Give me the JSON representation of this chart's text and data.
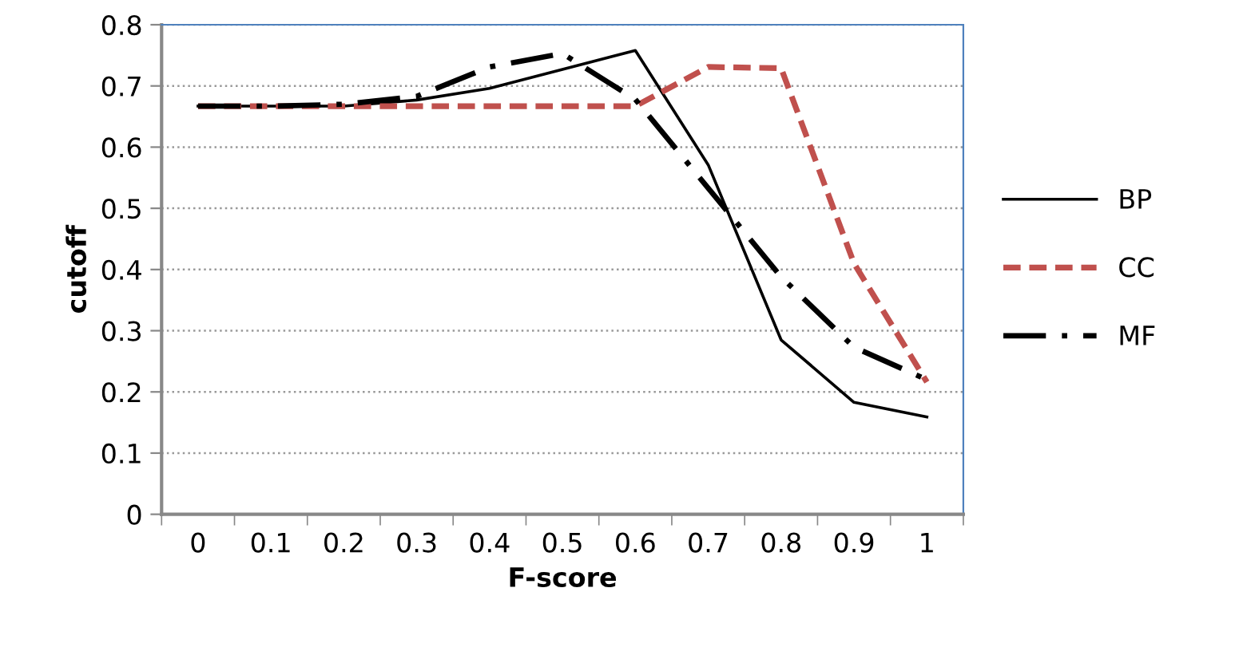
{
  "chart_data": {
    "type": "line",
    "xlabel": "F-score",
    "ylabel": "cutoff",
    "categories": [
      "0",
      "0.1",
      "0.2",
      "0.3",
      "0.4",
      "0.5",
      "0.6",
      "0.7",
      "0.8",
      "0.9",
      "1"
    ],
    "series": [
      {
        "name": "BP",
        "color": "#000000",
        "line_style": "solid",
        "values": [
          0.667,
          0.667,
          0.667,
          0.677,
          0.696,
          0.727,
          0.758,
          0.571,
          0.285,
          0.183,
          0.159
        ]
      },
      {
        "name": "CC",
        "color": "#c0504d",
        "line_style": "dashed",
        "values": [
          0.667,
          0.667,
          0.667,
          0.667,
          0.667,
          0.667,
          0.667,
          0.731,
          0.729,
          0.41,
          0.216
        ]
      },
      {
        "name": "MF",
        "color": "#000000",
        "line_style": "dashdot",
        "values": [
          0.667,
          0.667,
          0.67,
          0.683,
          0.731,
          0.753,
          0.678,
          0.533,
          0.388,
          0.273,
          0.22
        ]
      }
    ],
    "ylim": [
      0,
      0.8
    ],
    "yticks": [
      0,
      0.1,
      0.2,
      0.3,
      0.4,
      0.5,
      0.6,
      0.7,
      0.8
    ],
    "grid": "y",
    "legend": "right",
    "marker": "none"
  }
}
